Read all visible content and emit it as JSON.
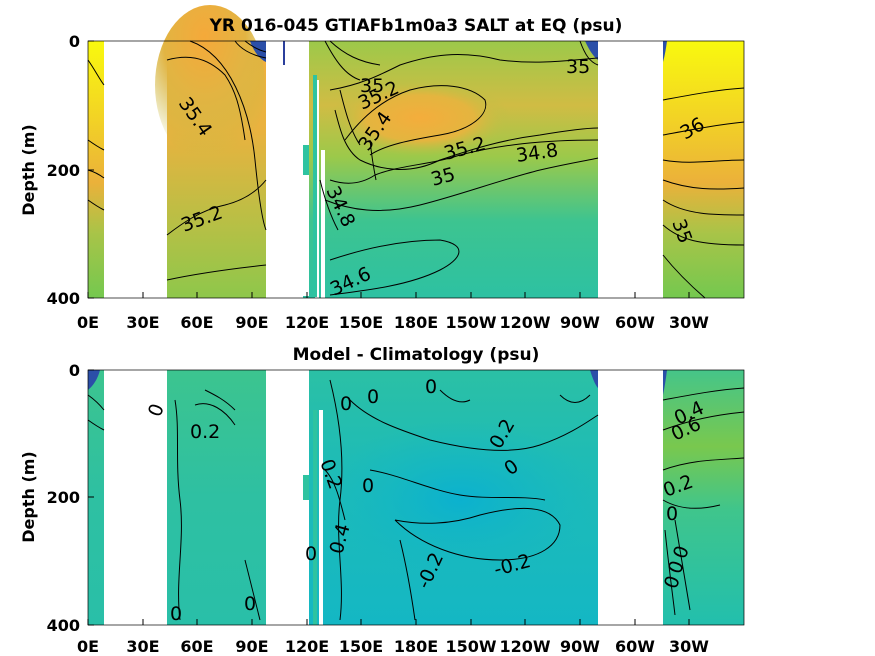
{
  "colors": {
    "background": "#ffffff",
    "land_gap": "#ffffff",
    "high_salt": "#f9f90e",
    "orange": "#f4b13c",
    "green": "#86c84c",
    "teal": "#2ec3a0",
    "cyan_low": "#17b8c8",
    "dark_blue": "#2b3f9c"
  },
  "chart_data": [
    {
      "type": "heatmap",
      "title": "YR 016-045 GTIAFb1m0a3 SALT at EQ (psu)",
      "xlabel": "",
      "ylabel": "Depth (m)",
      "x_ticks": [
        "0E",
        "30E",
        "60E",
        "90E",
        "120E",
        "150E",
        "180E",
        "150W",
        "120W",
        "90W",
        "60W",
        "30W"
      ],
      "y_ticks": [
        "0",
        "200",
        "400"
      ],
      "ylim": [
        400,
        0
      ],
      "contour_labels": [
        {
          "text": "35.4",
          "lon": 40,
          "depth": 110
        },
        {
          "text": "35.2",
          "lon": 48,
          "depth": 265
        },
        {
          "text": "35",
          "lon": 152,
          "depth": 70
        },
        {
          "text": "35.2",
          "lon": 160,
          "depth": 90
        },
        {
          "text": "35.4",
          "lon": 157,
          "depth": 150
        },
        {
          "text": "35.2",
          "lon": 198,
          "depth": 170
        },
        {
          "text": "35",
          "lon": 189,
          "depth": 210
        },
        {
          "text": "34.8",
          "lon": 234,
          "depth": 175
        },
        {
          "text": "34.8",
          "lon": 134,
          "depth": 240
        },
        {
          "text": "34.6",
          "lon": 140,
          "depth": 370
        },
        {
          "text": "35",
          "lon": 272,
          "depth": 40
        },
        {
          "text": "36",
          "lon": 341,
          "depth": 130
        },
        {
          "text": "35",
          "lon": 338,
          "depth": 290
        }
      ]
    },
    {
      "type": "heatmap",
      "title": "Model - Climatology (psu)",
      "xlabel": "",
      "ylabel": "Depth (m)",
      "x_ticks": [
        "0E",
        "30E",
        "60E",
        "90E",
        "120E",
        "150E",
        "180E",
        "150W",
        "120W",
        "90W",
        "60W",
        "30W"
      ],
      "y_ticks": [
        "0",
        "200",
        "400"
      ],
      "ylim": [
        400,
        0
      ],
      "contour_labels": [
        {
          "text": "0",
          "lon": 36,
          "depth": 70
        },
        {
          "text": "0.2",
          "lon": 54,
          "depth": 95
        },
        {
          "text": "0",
          "lon": 148,
          "depth": 55
        },
        {
          "text": "0",
          "lon": 164,
          "depth": 45
        },
        {
          "text": "0",
          "lon": 192,
          "depth": 30
        },
        {
          "text": "0.2",
          "lon": 241,
          "depth": 105
        },
        {
          "text": "0",
          "lon": 236,
          "depth": 155
        },
        {
          "text": "0.2",
          "lon": 137,
          "depth": 165
        },
        {
          "text": "0",
          "lon": 161,
          "depth": 180
        },
        {
          "text": "0.4",
          "lon": 136,
          "depth": 255
        },
        {
          "text": "0",
          "lon": 124,
          "depth": 290
        },
        {
          "text": "-0.2",
          "lon": 194,
          "depth": 330
        },
        {
          "text": "-0.2",
          "lon": 237,
          "depth": 300
        },
        {
          "text": "0",
          "lon": 40,
          "depth": 375
        },
        {
          "text": "0",
          "lon": 77,
          "depth": 360
        },
        {
          "text": "0.4",
          "lon": 345,
          "depth": 70
        },
        {
          "text": "0.6",
          "lon": 343,
          "depth": 90
        },
        {
          "text": "0.2",
          "lon": 336,
          "depth": 185
        },
        {
          "text": "0",
          "lon": 330,
          "depth": 225
        },
        {
          "text": "0",
          "lon": 341,
          "depth": 285
        },
        {
          "text": "0",
          "lon": 337,
          "depth": 305
        },
        {
          "text": "0",
          "lon": 335,
          "depth": 325
        }
      ]
    }
  ]
}
